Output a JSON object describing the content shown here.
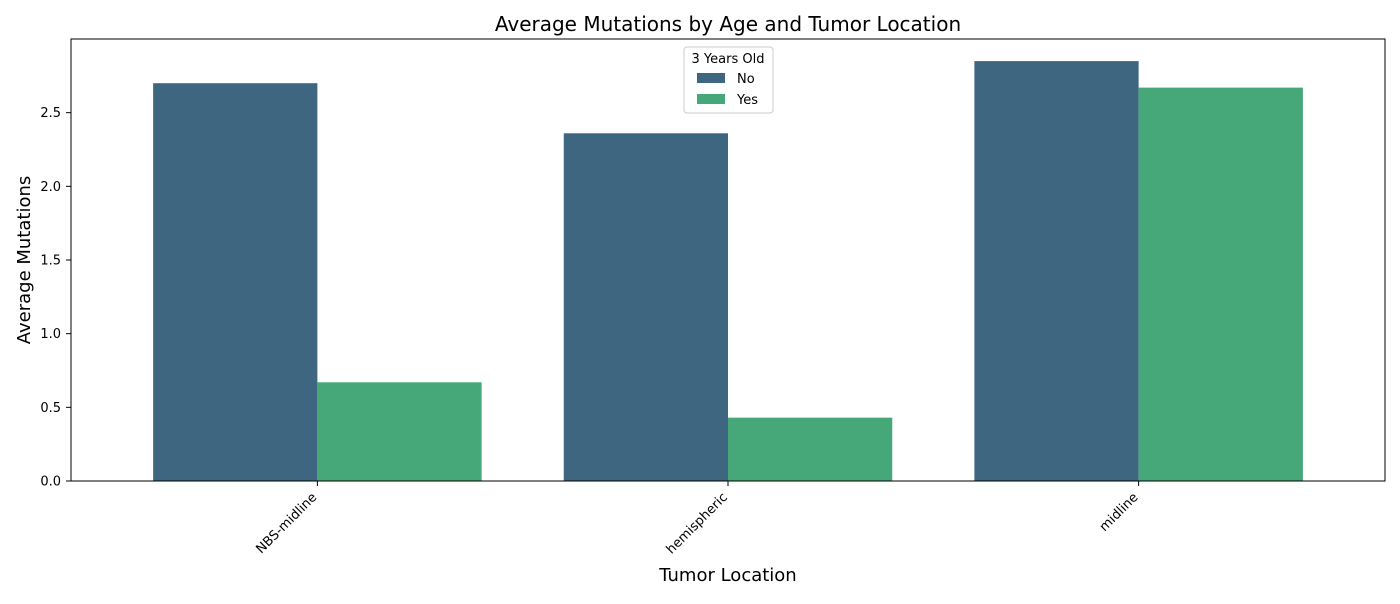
{
  "chart_data": {
    "type": "bar",
    "title": "Average Mutations by Age and Tumor Location",
    "xlabel": "Tumor Location",
    "ylabel": "Average Mutations",
    "categories": [
      "NBS-midline",
      "hemispheric",
      "midline"
    ],
    "series": [
      {
        "name": "No",
        "values": [
          2.7,
          2.36,
          2.85
        ],
        "color": "#3f6681"
      },
      {
        "name": "Yes",
        "values": [
          0.67,
          0.43,
          2.67
        ],
        "color": "#46a878"
      }
    ],
    "ylim": [
      0,
      3.0
    ],
    "yticks": [
      "0.0",
      "0.5",
      "1.0",
      "1.5",
      "2.0",
      "2.5"
    ],
    "grid": false,
    "legend": {
      "title": "3 Years Old",
      "placement": "upper-center"
    }
  }
}
